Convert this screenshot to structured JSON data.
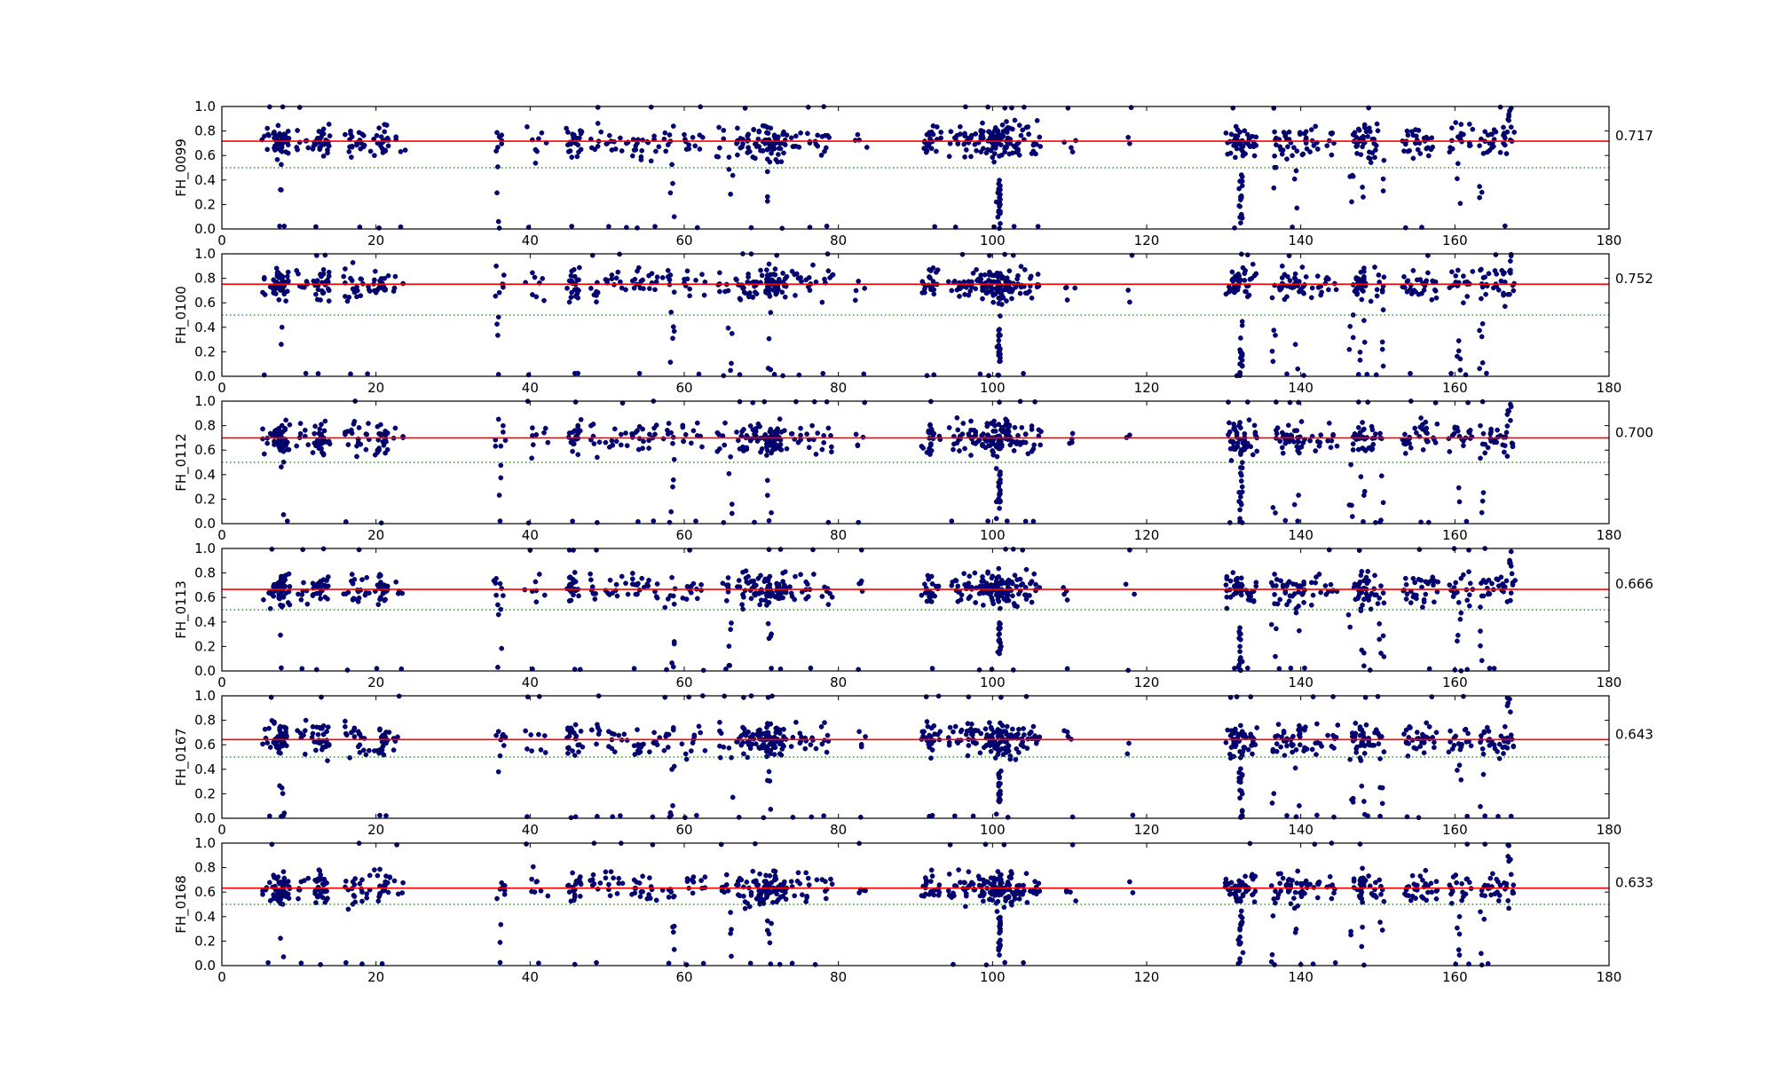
{
  "colors": {
    "point": "#000080",
    "mean_line": "#ff0000",
    "threshold_line": "#008000",
    "axes": "#000000",
    "background": "#ffffff"
  },
  "x_ticks": [
    "0",
    "20",
    "40",
    "60",
    "80",
    "100",
    "120",
    "140",
    "160",
    "180"
  ],
  "y_ticks": [
    "0.0",
    "0.2",
    "0.4",
    "0.6",
    "0.8",
    "1.0"
  ],
  "chart_data": [
    {
      "type": "scatter",
      "ylabel": "FH_0099",
      "mean": 0.717,
      "mean_label": "0.717",
      "threshold": 0.5,
      "xlim": [
        0,
        180
      ],
      "ylim": [
        0,
        1
      ],
      "grid": false,
      "series": [
        {
          "name": "",
          "points": []
        }
      ]
    },
    {
      "type": "scatter",
      "ylabel": "FH_0100",
      "mean": 0.752,
      "mean_label": "0.752",
      "threshold": 0.5,
      "xlim": [
        0,
        180
      ],
      "ylim": [
        0,
        1
      ],
      "grid": false,
      "series": [
        {
          "name": "",
          "points": []
        }
      ]
    },
    {
      "type": "scatter",
      "ylabel": "FH_0112",
      "mean": 0.7,
      "mean_label": "0.700",
      "threshold": 0.5,
      "xlim": [
        0,
        180
      ],
      "ylim": [
        0,
        1
      ],
      "grid": false,
      "series": [
        {
          "name": "",
          "points": []
        }
      ]
    },
    {
      "type": "scatter",
      "ylabel": "FH_0113",
      "mean": 0.666,
      "mean_label": "0.666",
      "threshold": 0.5,
      "xlim": [
        0,
        180
      ],
      "ylim": [
        0,
        1
      ],
      "grid": false,
      "series": [
        {
          "name": "",
          "points": []
        }
      ]
    },
    {
      "type": "scatter",
      "ylabel": "FH_0167",
      "mean": 0.643,
      "mean_label": "0.643",
      "threshold": 0.5,
      "xlim": [
        0,
        180
      ],
      "ylim": [
        0,
        1
      ],
      "grid": false,
      "series": [
        {
          "name": "",
          "points": []
        }
      ]
    },
    {
      "type": "scatter",
      "ylabel": "FH_0168",
      "mean": 0.633,
      "mean_label": "0.633",
      "threshold": 0.5,
      "xlim": [
        0,
        180
      ],
      "ylim": [
        0,
        1
      ],
      "grid": false,
      "series": [
        {
          "name": "",
          "points": []
        }
      ]
    }
  ]
}
